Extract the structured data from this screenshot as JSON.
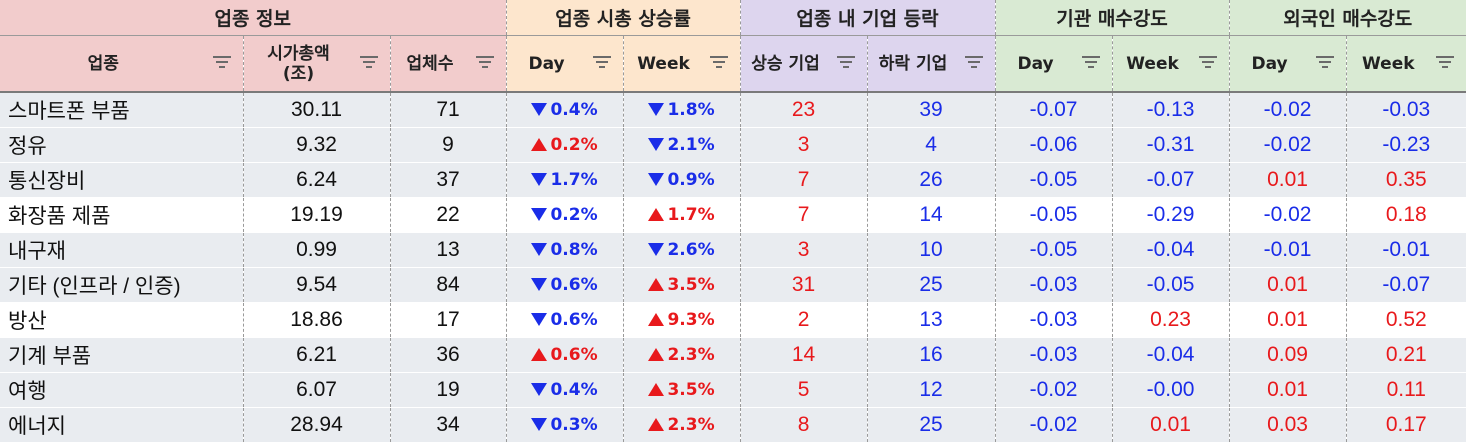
{
  "groups": [
    {
      "label": "업종 정보",
      "span": 3,
      "cls": "info"
    },
    {
      "label": "업종 시총 상승률",
      "span": 2,
      "cls": "mcap"
    },
    {
      "label": "업종 내 기업 등락",
      "span": 2,
      "cls": "rise"
    },
    {
      "label": "기관 매수강도",
      "span": 2,
      "cls": "inst"
    },
    {
      "label": "외국인 매수강도",
      "span": 2,
      "cls": "for"
    }
  ],
  "headers": {
    "sector": "업종",
    "mcap": "시가총액\n(조)",
    "count": "업체수",
    "mcap_day": "Day",
    "mcap_week": "Week",
    "rising": "상승 기업",
    "falling": "하락 기업",
    "inst_day": "Day",
    "inst_week": "Week",
    "for_day": "Day",
    "for_week": "Week"
  },
  "colors": {
    "up": "#e8191c",
    "down": "#1a2de8",
    "header_info": "#f2cccc",
    "header_mcap": "#fde6cd",
    "header_rise": "#ddd5ee",
    "header_flow": "#d9ead3",
    "row_alt": "#e9ecf0"
  },
  "rows": [
    {
      "sector": "스마트폰 부품",
      "mcap": "30.11",
      "count": "71",
      "day": {
        "dir": "down",
        "val": "0.4%"
      },
      "week": {
        "dir": "down",
        "val": "1.8%"
      },
      "rising": "23",
      "falling": "39",
      "inst_day": "-0.07",
      "inst_week": "-0.13",
      "for_day": "-0.02",
      "for_week": "-0.03",
      "shade": "alt"
    },
    {
      "sector": "정유",
      "mcap": "9.32",
      "count": "9",
      "day": {
        "dir": "up",
        "val": "0.2%"
      },
      "week": {
        "dir": "down",
        "val": "2.1%"
      },
      "rising": "3",
      "falling": "4",
      "inst_day": "-0.06",
      "inst_week": "-0.31",
      "for_day": "-0.02",
      "for_week": "-0.23",
      "shade": "alt"
    },
    {
      "sector": "통신장비",
      "mcap": "6.24",
      "count": "37",
      "day": {
        "dir": "down",
        "val": "1.7%"
      },
      "week": {
        "dir": "down",
        "val": "0.9%"
      },
      "rising": "7",
      "falling": "26",
      "inst_day": "-0.05",
      "inst_week": "-0.07",
      "for_day": "0.01",
      "for_week": "0.35",
      "shade": "alt"
    },
    {
      "sector": "화장품 제품",
      "mcap": "19.19",
      "count": "22",
      "day": {
        "dir": "down",
        "val": "0.2%"
      },
      "week": {
        "dir": "up",
        "val": "1.7%"
      },
      "rising": "7",
      "falling": "14",
      "inst_day": "-0.05",
      "inst_week": "-0.29",
      "for_day": "-0.02",
      "for_week": "0.18",
      "shade": "wht"
    },
    {
      "sector": "내구재",
      "mcap": "0.99",
      "count": "13",
      "day": {
        "dir": "down",
        "val": "0.8%"
      },
      "week": {
        "dir": "down",
        "val": "2.6%"
      },
      "rising": "3",
      "falling": "10",
      "inst_day": "-0.05",
      "inst_week": "-0.04",
      "for_day": "-0.01",
      "for_week": "-0.01",
      "shade": "alt"
    },
    {
      "sector": "기타 (인프라 / 인증)",
      "mcap": "9.54",
      "count": "84",
      "day": {
        "dir": "down",
        "val": "0.6%"
      },
      "week": {
        "dir": "up",
        "val": "3.5%"
      },
      "rising": "31",
      "falling": "25",
      "inst_day": "-0.03",
      "inst_week": "-0.05",
      "for_day": "0.01",
      "for_week": "-0.07",
      "shade": "alt"
    },
    {
      "sector": "방산",
      "mcap": "18.86",
      "count": "17",
      "day": {
        "dir": "down",
        "val": "0.6%"
      },
      "week": {
        "dir": "up",
        "val": "9.3%"
      },
      "rising": "2",
      "falling": "13",
      "inst_day": "-0.03",
      "inst_week": "0.23",
      "for_day": "0.01",
      "for_week": "0.52",
      "shade": "wht"
    },
    {
      "sector": "기계 부품",
      "mcap": "6.21",
      "count": "36",
      "day": {
        "dir": "up",
        "val": "0.6%"
      },
      "week": {
        "dir": "up",
        "val": "2.3%"
      },
      "rising": "14",
      "falling": "16",
      "inst_day": "-0.03",
      "inst_week": "-0.04",
      "for_day": "0.09",
      "for_week": "0.21",
      "shade": "alt"
    },
    {
      "sector": "여행",
      "mcap": "6.07",
      "count": "19",
      "day": {
        "dir": "down",
        "val": "0.4%"
      },
      "week": {
        "dir": "up",
        "val": "3.5%"
      },
      "rising": "5",
      "falling": "12",
      "inst_day": "-0.02",
      "inst_week": "-0.00",
      "for_day": "0.01",
      "for_week": "0.11",
      "shade": "alt"
    },
    {
      "sector": "에너지",
      "mcap": "28.94",
      "count": "34",
      "day": {
        "dir": "down",
        "val": "0.3%"
      },
      "week": {
        "dir": "up",
        "val": "2.3%"
      },
      "rising": "8",
      "falling": "25",
      "inst_day": "-0.02",
      "inst_week": "0.01",
      "for_day": "0.03",
      "for_week": "0.17",
      "shade": "alt"
    }
  ]
}
